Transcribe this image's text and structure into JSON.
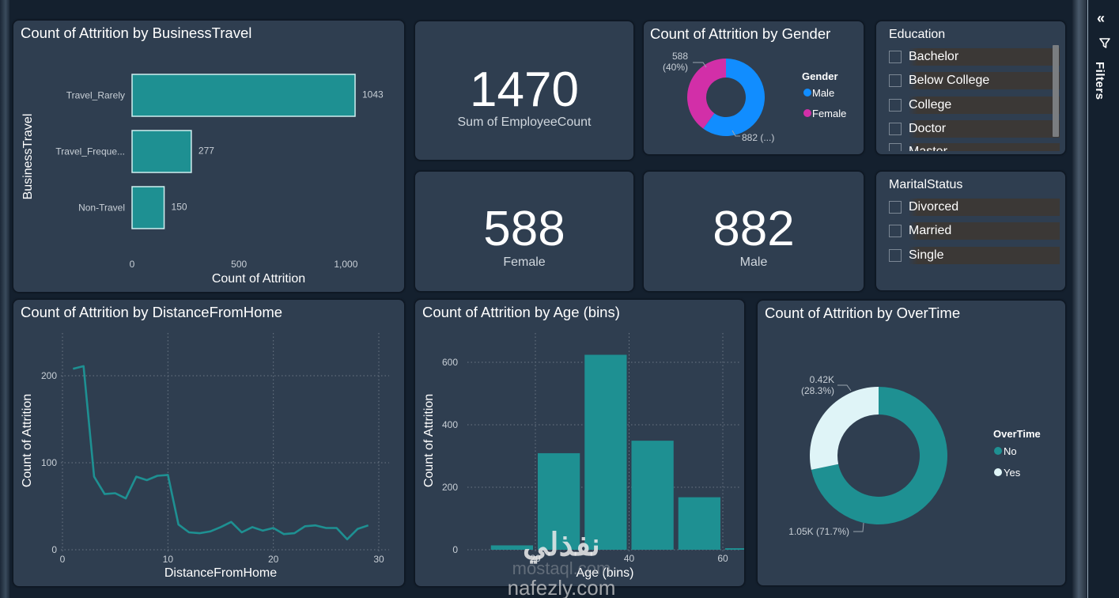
{
  "filters_pane": {
    "label": "Filters",
    "collapse_icon": "double-chevron-left-icon",
    "filter_icon": "funnel-icon"
  },
  "colors": {
    "page_bg": "#14202e",
    "card_bg": "#2f3e50",
    "teal": "#1e9092",
    "teal_border": "#cfeff0",
    "male_blue": "#118dff",
    "female_pink": "#d22fa8",
    "overtime_yes": "#dff4f7",
    "grid": "#6b7785",
    "axis_text": "#c8cfd6"
  },
  "kpis": {
    "employee_count": {
      "value": "1470",
      "label": "Sum of EmployeeCount"
    },
    "female": {
      "value": "588",
      "label": "Female"
    },
    "male": {
      "value": "882",
      "label": "Male"
    }
  },
  "slicers": {
    "education": {
      "header": "Education",
      "items": [
        "Bachelor",
        "Below College",
        "College",
        "Doctor",
        "Master"
      ]
    },
    "marital_status": {
      "header": "MaritalStatus",
      "items": [
        "Divorced",
        "Married",
        "Single"
      ]
    }
  },
  "watermark": {
    "line1": "نفذلي",
    "line2": "mostaql.com",
    "line3": "nafezly.com"
  },
  "chart_data": [
    {
      "id": "business_travel",
      "type": "bar",
      "orientation": "horizontal",
      "title": "Count of Attrition by BusinessTravel",
      "categories": [
        "Travel_Rarely",
        "Travel_Freque...",
        "Non-Travel"
      ],
      "values": [
        1043,
        277,
        150
      ],
      "data_labels": [
        "1043",
        "277",
        "150"
      ],
      "xlabel": "Count of Attrition",
      "ylabel": "BusinessTravel",
      "xlim": [
        0,
        1100
      ],
      "xticks": [
        0,
        500,
        1000
      ],
      "xtick_labels": [
        "0",
        "500",
        "1,000"
      ],
      "grid": false
    },
    {
      "id": "gender",
      "type": "pie",
      "donut": true,
      "title": "Count of Attrition by Gender",
      "categories": [
        "Male",
        "Female"
      ],
      "values": [
        882,
        588
      ],
      "data_labels": [
        "882 (...)",
        "588\n(40%)"
      ],
      "legend_title": "Gender",
      "legend_position": "right"
    },
    {
      "id": "distance_from_home",
      "type": "line",
      "title": "Count of Attrition by DistanceFromHome",
      "x": [
        1,
        2,
        3,
        4,
        5,
        6,
        7,
        8,
        9,
        10,
        11,
        12,
        13,
        14,
        15,
        16,
        17,
        18,
        19,
        20,
        21,
        22,
        23,
        24,
        25,
        26,
        27,
        28,
        29
      ],
      "values": [
        208,
        211,
        84,
        64,
        65,
        59,
        84,
        80,
        85,
        86,
        29,
        20,
        19,
        21,
        26,
        32,
        20,
        26,
        22,
        25,
        18,
        19,
        27,
        28,
        25,
        25,
        12,
        24,
        28
      ],
      "xlabel": "DistanceFromHome",
      "ylabel": "Count of Attrition",
      "xlim": [
        0,
        30
      ],
      "ylim": [
        0,
        240
      ],
      "xticks": [
        0,
        10,
        20,
        30
      ],
      "yticks": [
        0,
        100,
        200
      ],
      "grid": true
    },
    {
      "id": "age_bins",
      "type": "bar",
      "title": "Count of Attrition by Age (bins)",
      "x": [
        15,
        25,
        35,
        45,
        55,
        65
      ],
      "values": [
        14,
        309,
        624,
        349,
        168,
        5
      ],
      "bin_width": 10,
      "xlabel": "Age (bins)",
      "ylabel": "Count of Attrition",
      "xlim": [
        10,
        70
      ],
      "ylim": [
        0,
        680
      ],
      "xticks": [
        20,
        40,
        60
      ],
      "yticks": [
        0,
        200,
        400,
        600
      ],
      "grid": true
    },
    {
      "id": "overtime",
      "type": "pie",
      "donut": true,
      "title": "Count of Attrition by OverTime",
      "categories": [
        "No",
        "Yes"
      ],
      "values": [
        1054,
        416
      ],
      "data_labels": [
        "1.05K (71.7%)",
        "0.42K\n(28.3%)"
      ],
      "legend_title": "OverTime",
      "legend_position": "right"
    }
  ]
}
